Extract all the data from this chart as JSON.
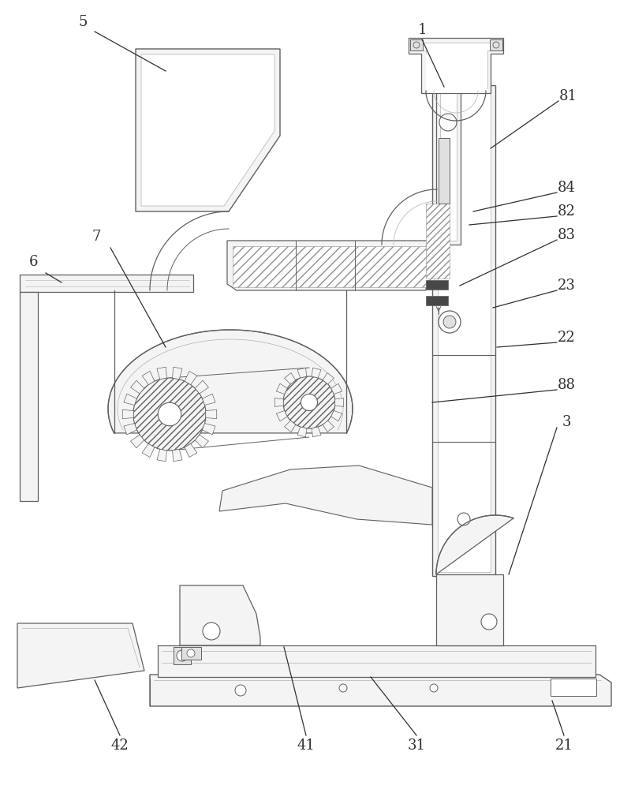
{
  "bg": "#ffffff",
  "lc": "#606060",
  "dc": "#303030",
  "lg": "#b0b0b0",
  "mg": "#909090",
  "fl": "#f4f4f4",
  "fm": "#e0e0e0",
  "fd": "#484848",
  "lw_main": 1.0,
  "lw_thin": 0.6,
  "lw_thick": 1.2,
  "fs": 13,
  "annotation_lw": 0.9
}
